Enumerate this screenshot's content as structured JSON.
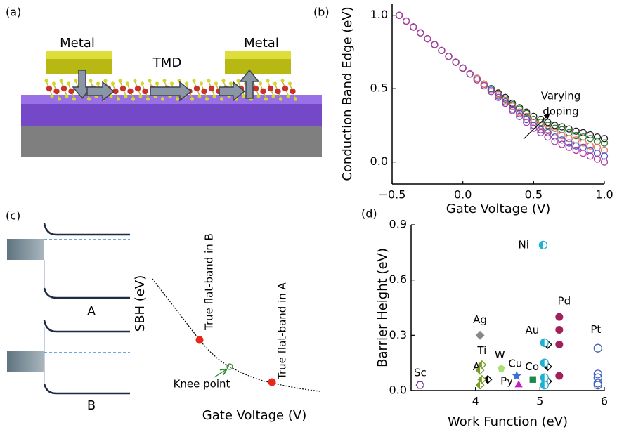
{
  "panel_labels": [
    "(a)",
    "(b)",
    "(c)",
    "(d)"
  ],
  "diagram_a": {
    "labels": [
      "Metal",
      "TMD",
      "Metal"
    ]
  },
  "diagram_c": {
    "band_labels": [
      "A",
      "B"
    ],
    "y_label": "SBH (eV)",
    "x_label": "Gate Voltage (V)",
    "annotations": [
      "True flat-band in B",
      "True flat-band in A",
      "Knee point"
    ]
  },
  "chart_data": [
    {
      "type": "scatter",
      "marker": "open-circle",
      "x_label": "Gate Voltage (V)",
      "y_label": "Conduction Band Edge (eV)",
      "annotation": [
        "Varying",
        "doping"
      ],
      "x": [
        -0.45,
        -0.4,
        -0.35,
        -0.3,
        -0.25,
        -0.2,
        -0.15,
        -0.1,
        -0.05,
        0,
        0.05,
        0.1,
        0.15,
        0.2,
        0.25,
        0.3,
        0.35,
        0.4,
        0.45,
        0.5,
        0.55,
        0.6,
        0.65,
        0.7,
        0.75,
        0.8,
        0.85,
        0.9,
        0.95,
        1.0
      ],
      "series": [
        {
          "color": "#1a1a1a",
          "values": [
            1.0,
            0.96,
            0.92,
            0.88,
            0.84,
            0.8,
            0.76,
            0.72,
            0.68,
            0.64,
            0.6,
            0.57,
            0.53,
            0.5,
            0.47,
            0.44,
            0.4,
            0.37,
            0.34,
            0.31,
            0.29,
            0.27,
            0.25,
            0.24,
            0.225,
            0.21,
            0.2,
            0.185,
            0.17,
            0.16
          ]
        },
        {
          "color": "#2e7d32",
          "values": [
            1.0,
            0.96,
            0.92,
            0.88,
            0.84,
            0.8,
            0.76,
            0.72,
            0.68,
            0.64,
            0.6,
            0.57,
            0.53,
            0.5,
            0.46,
            0.43,
            0.39,
            0.36,
            0.33,
            0.29,
            0.27,
            0.25,
            0.23,
            0.22,
            0.2,
            0.18,
            0.17,
            0.16,
            0.14,
            0.13
          ]
        },
        {
          "color": "#e57368",
          "values": [
            1.0,
            0.96,
            0.92,
            0.88,
            0.84,
            0.8,
            0.76,
            0.72,
            0.68,
            0.64,
            0.6,
            0.57,
            0.53,
            0.49,
            0.46,
            0.42,
            0.38,
            0.34,
            0.31,
            0.27,
            0.25,
            0.22,
            0.2,
            0.18,
            0.16,
            0.15,
            0.13,
            0.11,
            0.1,
            0.08
          ]
        },
        {
          "color": "#4b55c8",
          "values": [
            1.0,
            0.96,
            0.92,
            0.88,
            0.84,
            0.8,
            0.76,
            0.72,
            0.68,
            0.64,
            0.6,
            0.56,
            0.52,
            0.49,
            0.45,
            0.41,
            0.36,
            0.33,
            0.29,
            0.25,
            0.22,
            0.2,
            0.17,
            0.15,
            0.13,
            0.11,
            0.1,
            0.08,
            0.06,
            0.04
          ]
        },
        {
          "color": "#b03aa0",
          "values": [
            1.0,
            0.96,
            0.92,
            0.88,
            0.84,
            0.8,
            0.76,
            0.72,
            0.68,
            0.64,
            0.6,
            0.56,
            0.52,
            0.48,
            0.44,
            0.4,
            0.35,
            0.31,
            0.27,
            0.23,
            0.2,
            0.17,
            0.14,
            0.12,
            0.1,
            0.08,
            0.06,
            0.04,
            0.02,
            0.0
          ]
        }
      ],
      "xlim": [
        -0.5,
        1.0
      ],
      "ylim": [
        -0.15,
        1.08
      ],
      "xticks": [
        {
          "value": -0.5,
          "label": "−0.5"
        },
        {
          "value": 0,
          "label": "0.0"
        },
        {
          "value": 0.5,
          "label": "0.5"
        },
        {
          "value": 1.0,
          "label": "1.0"
        }
      ],
      "yticks": [
        {
          "value": 0,
          "label": "0.0"
        },
        {
          "value": 0.5,
          "label": "0.5"
        },
        {
          "value": 1.0,
          "label": "1.0"
        }
      ]
    },
    {
      "type": "scatter",
      "x_label": "Work Function (eV)",
      "y_label": "Barrier Height (eV)",
      "series": [
        {
          "name": "Sc",
          "color": "#6a3d9a",
          "marker": "hexagon",
          "x": [
            3.14
          ],
          "values": [
            0.03
          ]
        },
        {
          "name": "Al",
          "color": "#000000",
          "marker": "diamond-half",
          "x": [
            4.19
          ],
          "values": [
            0.06
          ]
        },
        {
          "name": "Ag",
          "color": "#888888",
          "marker": "diamond",
          "x": [
            4.07
          ],
          "values": [
            0.3
          ]
        },
        {
          "name": "Ti",
          "color": "#7a9a2a",
          "marker": "diamond-half",
          "x": [
            4.1,
            4.07,
            4.1,
            4.07
          ],
          "values": [
            0.14,
            0.11,
            0.06,
            0.03
          ]
        },
        {
          "name": "W",
          "color": "#a8e070",
          "marker": "pentagon",
          "x": [
            4.4
          ],
          "values": [
            0.12
          ]
        },
        {
          "name": "Cu",
          "color": "#3a6fd8",
          "marker": "star",
          "x": [
            4.64
          ],
          "values": [
            0.08
          ]
        },
        {
          "name": "Py",
          "color": "#c020c0",
          "marker": "triangle",
          "x": [
            4.67
          ],
          "values": [
            0.03
          ]
        },
        {
          "name": "Co",
          "color": "#1a8a4a",
          "marker": "square",
          "x": [
            4.89
          ],
          "values": [
            0.06
          ]
        },
        {
          "name": "Ni",
          "color": "#20b0d0",
          "marker": "circle-half",
          "x": [
            5.05
          ],
          "values": [
            0.79
          ]
        },
        {
          "name": "Au",
          "color": "#000000",
          "marker": "diamond-half",
          "x": [
            5.12,
            5.12,
            5.12
          ],
          "values": [
            0.25,
            0.13,
            0.05
          ]
        },
        {
          "color": "#20b0d0",
          "marker": "circle-half",
          "x": [
            5.07,
            5.07,
            5.07,
            5.07
          ],
          "values": [
            0.26,
            0.15,
            0.07,
            0.03
          ]
        },
        {
          "name": "Pd",
          "color": "#a0205a",
          "marker": "circle",
          "x": [
            5.3,
            5.3,
            5.3,
            5.3
          ],
          "values": [
            0.4,
            0.33,
            0.25,
            0.08
          ]
        },
        {
          "name": "Pt",
          "color": "#4060c0",
          "marker": "open-circle",
          "x": [
            5.9,
            5.9,
            5.9,
            5.9,
            5.9
          ],
          "values": [
            0.23,
            0.09,
            0.07,
            0.04,
            0.03
          ]
        }
      ],
      "xlim": [
        3.0,
        6.0
      ],
      "ylim": [
        0,
        0.9
      ],
      "xticks": [
        4,
        5,
        6
      ],
      "yticks": [
        {
          "value": 0,
          "label": "0.0"
        },
        {
          "value": 0.3,
          "label": "0.3"
        },
        {
          "value": 0.6,
          "label": "0.6"
        },
        {
          "value": 0.9,
          "label": "0.9"
        }
      ]
    }
  ]
}
